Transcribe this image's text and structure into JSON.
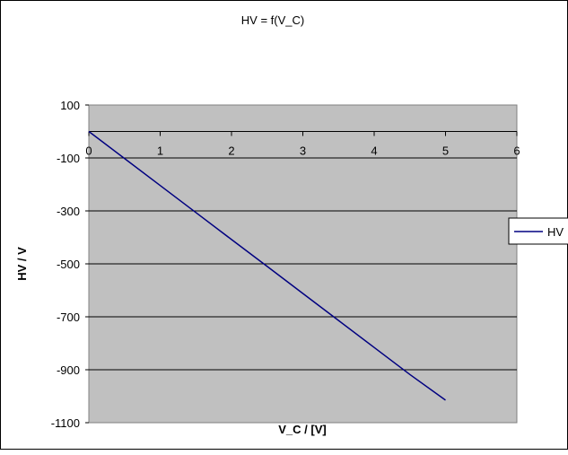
{
  "chart_data": {
    "type": "line",
    "title": "HV = f(V_C)",
    "xlabel": "V_C / [V]",
    "ylabel": "HV / V",
    "xlim": [
      0,
      6
    ],
    "ylim": [
      -1100,
      100
    ],
    "x_ticks": [
      0,
      1,
      2,
      3,
      4,
      5,
      6
    ],
    "y_ticks": [
      100,
      -100,
      -300,
      -500,
      -700,
      -900,
      -1100
    ],
    "x_axis_crosses_at_y": 0,
    "grid": "horizontal",
    "legend": "right",
    "plot_background": "#c0c0c0",
    "series": [
      {
        "name": "HV",
        "color": "#000080",
        "x": [
          0,
          0.5,
          1,
          1.5,
          2,
          2.5,
          3,
          3.5,
          4,
          4.5,
          5
        ],
        "y": [
          0,
          -102,
          -204,
          -306,
          -408,
          -510,
          -612,
          -714,
          -816,
          -918,
          -1015
        ]
      }
    ]
  }
}
